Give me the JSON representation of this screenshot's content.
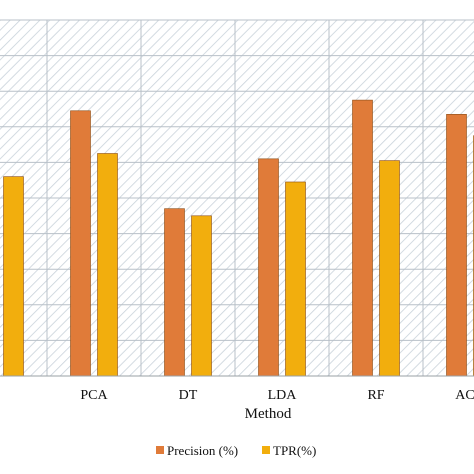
{
  "chart_data": {
    "type": "bar",
    "categories": [
      "",
      "PCA",
      "DT",
      "LDA",
      "RF",
      "ACO"
    ],
    "series": [
      {
        "name": "Precision (%)",
        "color": "#E07B39",
        "values": [
          null,
          74.5,
          47,
          61,
          77.5,
          73.5
        ]
      },
      {
        "name": "TPR(%)",
        "color": "#F2AE0D",
        "values": [
          56,
          62.5,
          45,
          54.5,
          60.5,
          67.5
        ]
      }
    ],
    "xlabel": "Method",
    "ylabel": "",
    "ylim": [
      0,
      100
    ],
    "grid": true,
    "legend": "bottom"
  }
}
